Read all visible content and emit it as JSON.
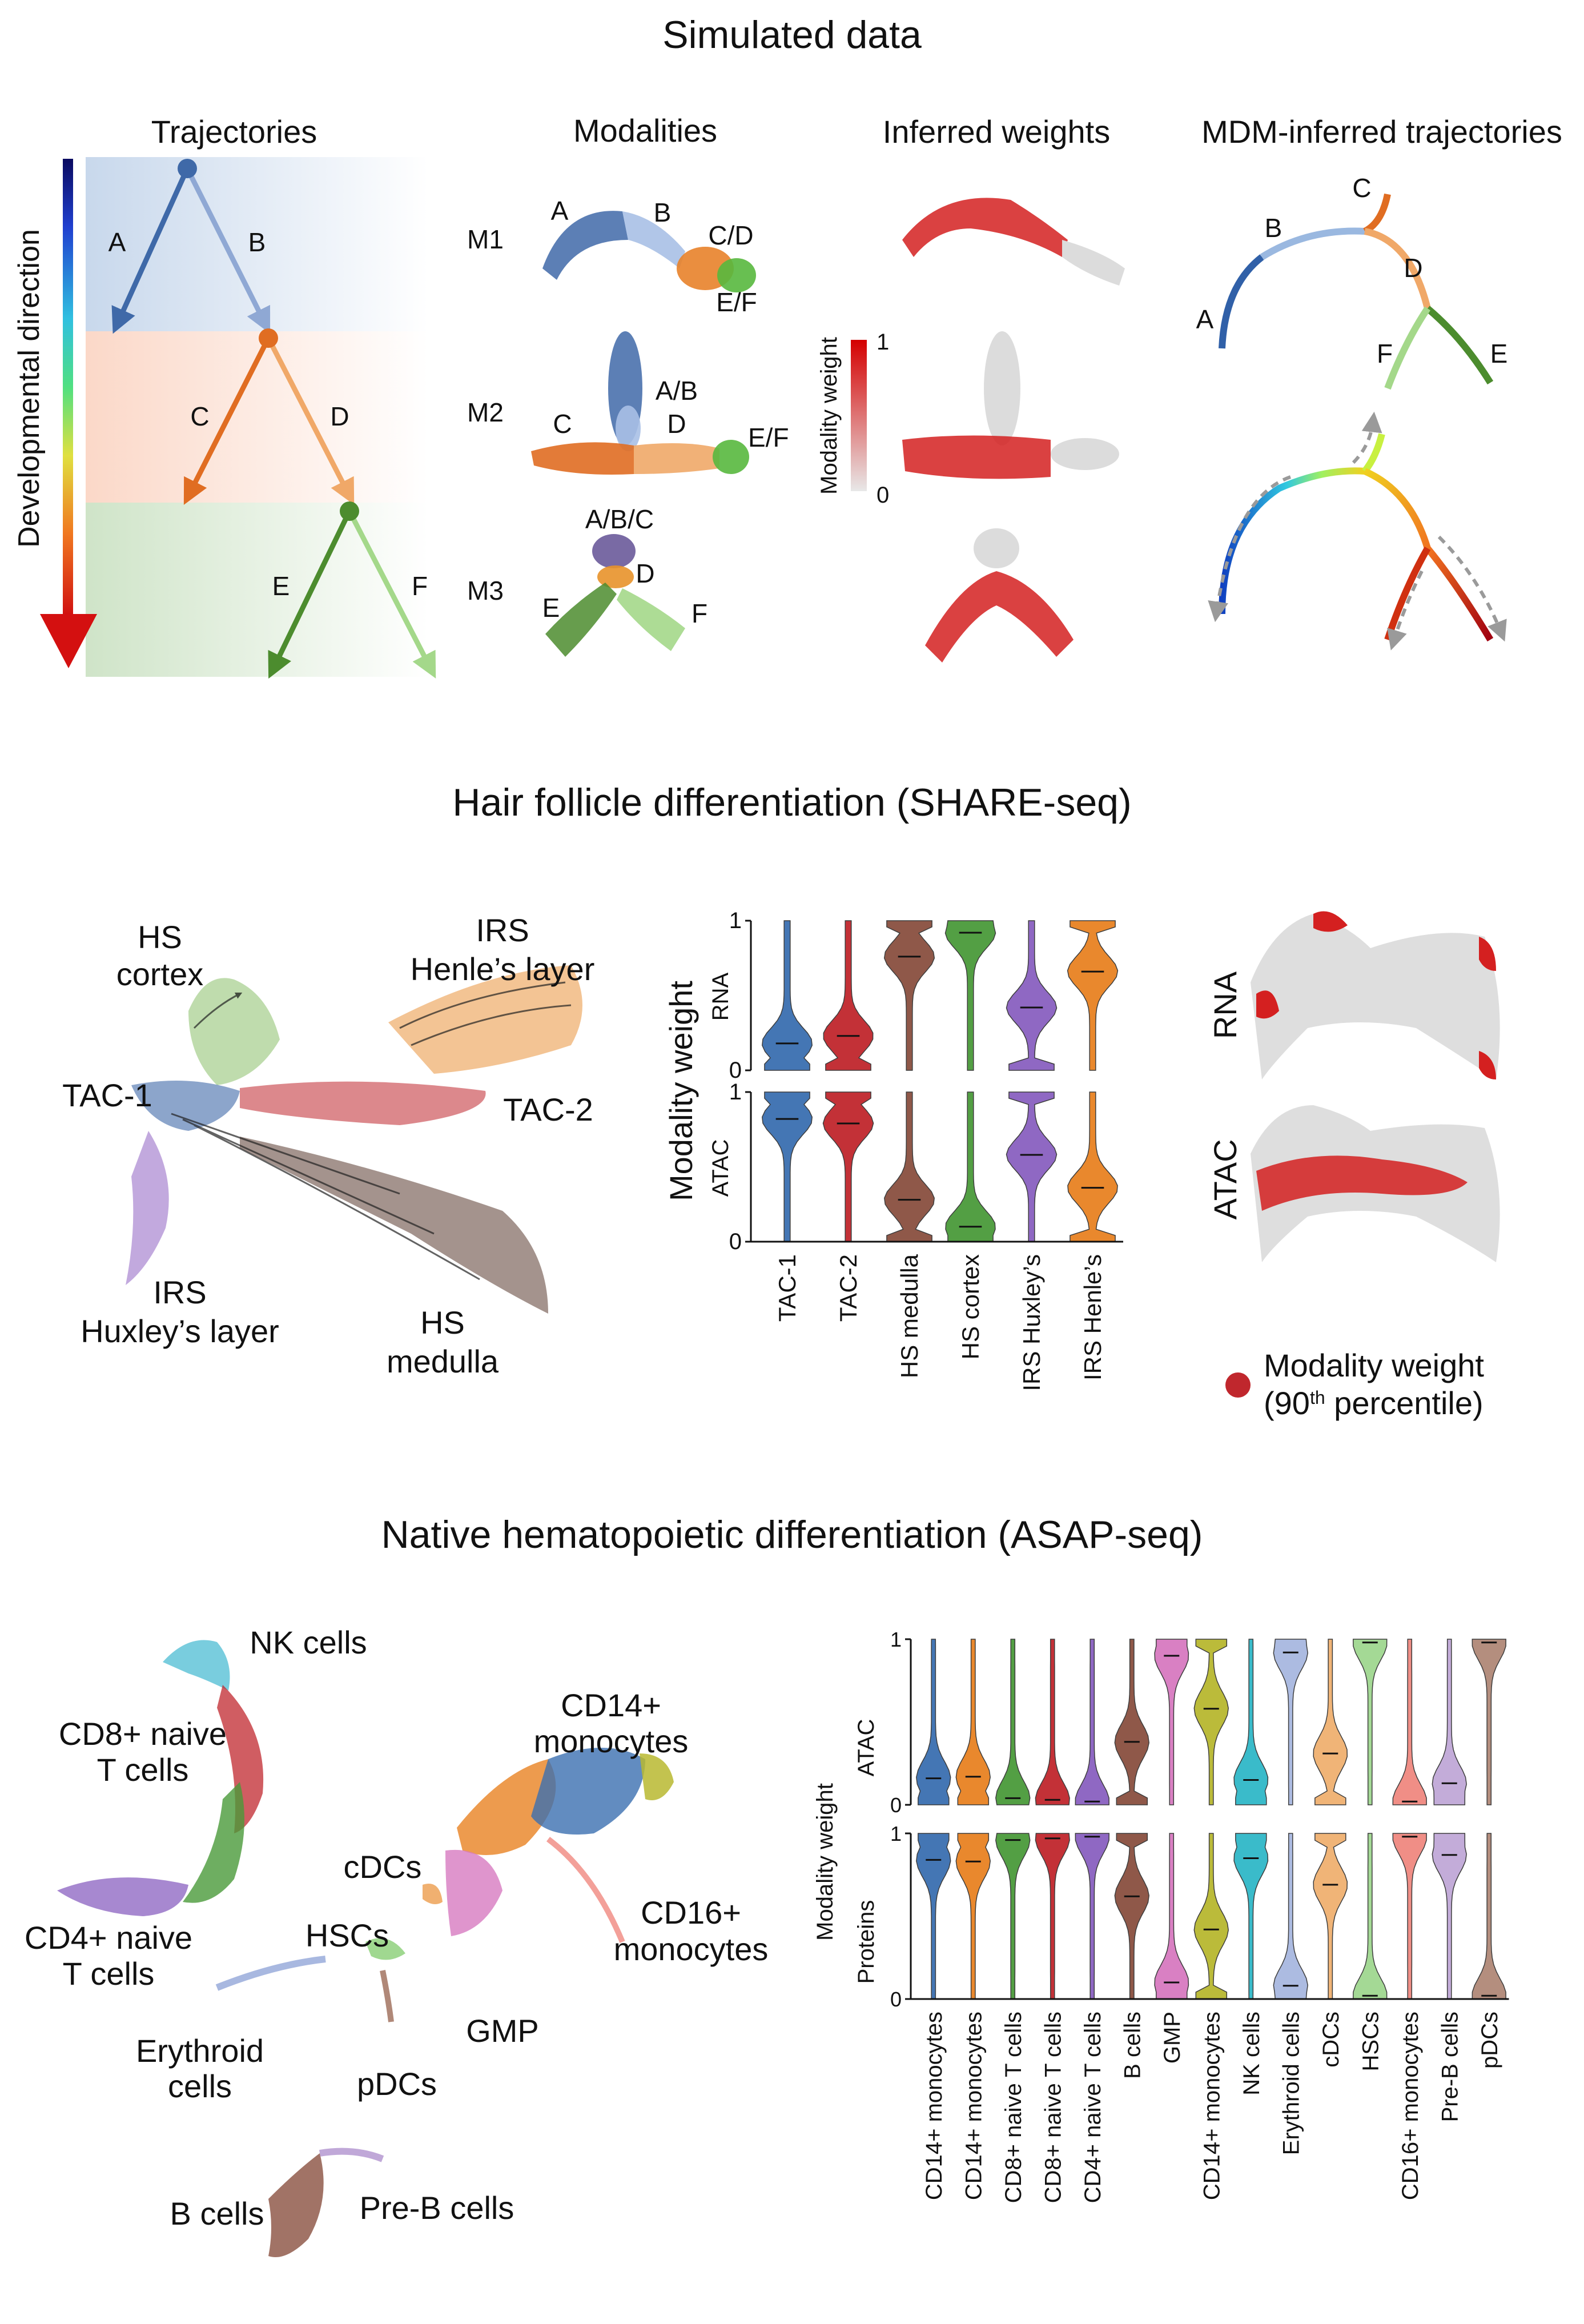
{
  "sim": {
    "title": "Simulated data",
    "col_trajectories": "Trajectories",
    "col_modalities": "Modalities",
    "col_weights": "Inferred weights",
    "col_mdm": "MDM-inferred trajectories",
    "dev_axis": "Developmental direction",
    "branches": [
      "A",
      "B",
      "C",
      "D",
      "E",
      "F"
    ],
    "rows": [
      "M1",
      "M2",
      "M3"
    ],
    "m1_labels": [
      "A",
      "B",
      "C/D",
      "E/F"
    ],
    "m2_labels": [
      "A/B",
      "C",
      "D",
      "E/F"
    ],
    "m3_labels": [
      "A/B/C",
      "D",
      "E",
      "F"
    ],
    "mdm_labels": [
      "A",
      "B",
      "C",
      "D",
      "E",
      "F"
    ],
    "colorbar_label": "Modality weight",
    "colorbar_ticks": [
      "1",
      "0"
    ]
  },
  "hair": {
    "title": "Hair follicle differentiation (SHARE-seq)",
    "umap_labels": [
      "HS",
      "cortex",
      "IRS",
      "Henle’s layer",
      "TAC-1",
      "TAC-2",
      "IRS",
      "Huxley’s layer",
      "HS",
      "medulla"
    ],
    "y_label": "Modality weight",
    "panel_labels": [
      "RNA",
      "ATAC"
    ],
    "y_ticks": [
      "1",
      "0"
    ],
    "map_labels": [
      "RNA",
      "ATAC"
    ],
    "legend_line1": "Modality weight",
    "legend_line2_pre": "(90",
    "legend_line2_sup": "th",
    "legend_line2_post": " percentile)"
  },
  "asap": {
    "title": "Native hematopoietic differentiation (ASAP-seq)",
    "umap_labels": [
      "NK cells",
      "CD8+ naive",
      "T cells",
      "CD14+",
      "monocytes",
      "CD4+ naive",
      "T cells",
      "cDCs",
      "CD16+",
      "monocytes",
      "HSCs",
      "GMP",
      "Erythroid",
      "cells",
      "pDCs",
      "B cells",
      "Pre-B cells"
    ],
    "y_label": "Modality weight",
    "panel_labels": [
      "ATAC",
      "Proteins"
    ],
    "y_ticks": [
      "1",
      "0"
    ]
  },
  "chart_data": [
    {
      "type": "violin",
      "title": "Hair follicle differentiation (SHARE-seq)",
      "ylabel": "Modality weight",
      "ylim": [
        0,
        1
      ],
      "categories": [
        "TAC-1",
        "TAC-2",
        "HS medulla",
        "HS cortex",
        "IRS Huxley’s",
        "IRS Henle’s"
      ],
      "colors": [
        "#3b6fb0",
        "#c0272d",
        "#8a5040",
        "#4a9a3a",
        "#8a60c0",
        "#e88222"
      ],
      "series": [
        {
          "name": "RNA",
          "medians": [
            0.18,
            0.23,
            0.76,
            0.92,
            0.42,
            0.66
          ]
        },
        {
          "name": "ATAC",
          "medians": [
            0.82,
            0.79,
            0.28,
            0.1,
            0.58,
            0.36
          ]
        }
      ]
    },
    {
      "type": "violin",
      "title": "Native hematopoietic differentiation (ASAP-seq)",
      "ylabel": "Modality weight",
      "ylim": [
        0,
        1
      ],
      "categories": [
        "CD14+ monocytes",
        "CD14+ monocytes",
        "CD8+ naive T cells",
        "CD8+ naive T cells",
        "CD4+ naive T cells",
        "B cells",
        "GMP",
        "CD14+ monocytes",
        "NK cells",
        "Erythroid cells",
        "cDCs",
        "HSCs",
        "CD16+ monocytes",
        "Pre-B cells",
        "pDCs"
      ],
      "colors": [
        "#3b6fb0",
        "#e88222",
        "#4a9a3a",
        "#c0272d",
        "#8a60c0",
        "#8a5040",
        "#d77ac0",
        "#b8b830",
        "#30b8c8",
        "#a8b8e0",
        "#f0b070",
        "#a0d890",
        "#f08880",
        "#c0a8d8",
        "#b08878"
      ],
      "series": [
        {
          "name": "ATAC",
          "medians": [
            0.16,
            0.17,
            0.04,
            0.03,
            0.02,
            0.38,
            0.9,
            0.58,
            0.15,
            0.92,
            0.31,
            0.98,
            0.02,
            0.13,
            0.98
          ]
        },
        {
          "name": "Proteins",
          "medians": [
            0.84,
            0.83,
            0.96,
            0.97,
            0.98,
            0.62,
            0.1,
            0.42,
            0.85,
            0.08,
            0.69,
            0.02,
            0.98,
            0.87,
            0.02
          ]
        }
      ]
    }
  ]
}
